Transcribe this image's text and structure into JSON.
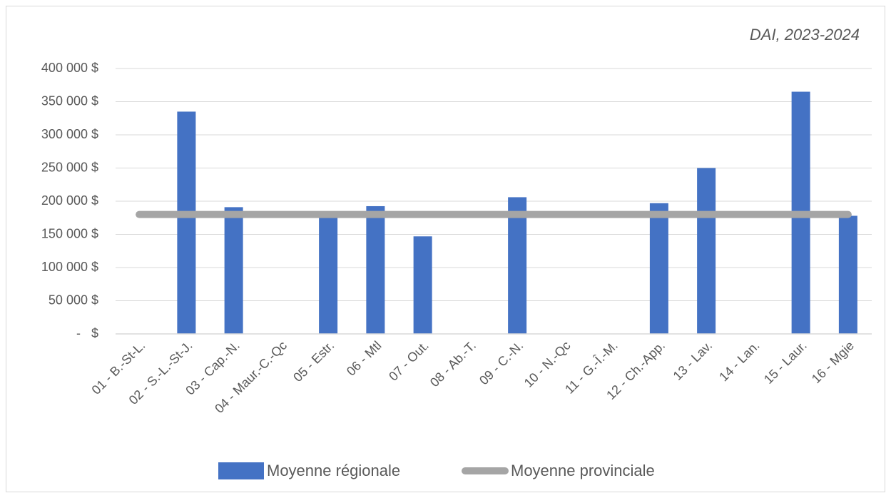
{
  "chart_data": {
    "type": "bar",
    "annotation": "DAI, 2023-2024",
    "categories": [
      "01 - B.-St-L.",
      "02 - S.-L.-St-J.",
      "03 - Cap.-N.",
      "04 - Maur.-C.-Qc",
      "05 - Estr.",
      "06 - Mtl",
      "07 - Out.",
      "08 - Ab.-T.",
      "09 - C.-N.",
      "10 - N.-Qc",
      "11 - G.-Î.-M.",
      "12 - Ch.-App.",
      "13 - Lav.",
      "14 - Lan.",
      "15 - Laur.",
      "16 - Mgie"
    ],
    "series": [
      {
        "name": "Moyenne régionale",
        "color": "#4472c4",
        "values": [
          null,
          335000,
          191000,
          null,
          178000,
          192500,
          147000,
          null,
          206000,
          null,
          null,
          197000,
          250000,
          null,
          365000,
          178000
        ]
      },
      {
        "name": "Moyenne provinciale",
        "type": "line",
        "color": "#a5a5a5",
        "values": [
          180000,
          180000,
          180000,
          180000,
          180000,
          180000,
          180000,
          180000,
          180000,
          180000,
          180000,
          180000,
          180000,
          180000,
          180000,
          180000
        ]
      }
    ],
    "ylim": [
      0,
      400000
    ],
    "yticks": [
      {
        "value": 0,
        "label": "-   $"
      },
      {
        "value": 50000,
        "label": "50 000 $"
      },
      {
        "value": 100000,
        "label": "100 000 $"
      },
      {
        "value": 150000,
        "label": "150 000 $"
      },
      {
        "value": 200000,
        "label": "200 000 $"
      },
      {
        "value": 250000,
        "label": "250 000 $"
      },
      {
        "value": 300000,
        "label": "300 000 $"
      },
      {
        "value": 350000,
        "label": "350 000 $"
      },
      {
        "value": 400000,
        "label": "400 000 $"
      }
    ],
    "grid": true
  }
}
